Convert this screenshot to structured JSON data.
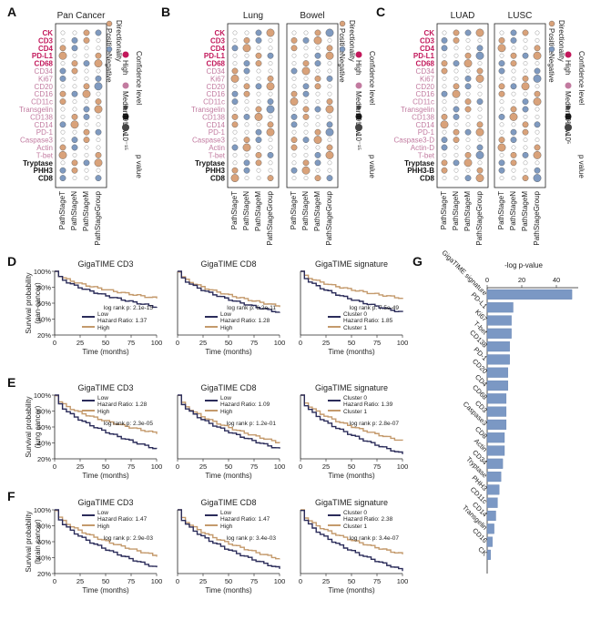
{
  "panel_letters": [
    "A",
    "B",
    "C",
    "D",
    "E",
    "F",
    "G"
  ],
  "markers": [
    "CK",
    "CD3",
    "CD4",
    "PD-L1",
    "CD68",
    "CD34",
    "Ki67",
    "CD20",
    "CD16",
    "CD11c",
    "Transgelin",
    "CD138",
    "CD14",
    "PD-1",
    "Caspase3",
    "Actin",
    "T-bet",
    "Tryptase",
    "PHH3",
    "CD8"
  ],
  "markers_c": [
    "CK",
    "CD3",
    "CD4",
    "PD-L1",
    "CD68",
    "CD34",
    "Ki67",
    "CD20",
    "CD16",
    "CD11c",
    "Transgelin",
    "CD138",
    "CD14",
    "PD-1",
    "Caspase3-D",
    "Actin-D",
    "T-bet",
    "Tryptase",
    "PHH3-B",
    "CD8"
  ],
  "marker_levels": [
    "H",
    "H",
    "H",
    "H",
    "H",
    "M",
    "M",
    "M",
    "M",
    "M",
    "M",
    "M",
    "M",
    "M",
    "M",
    "M",
    "M",
    "L",
    "L",
    "L"
  ],
  "stages": [
    "PathStageT",
    "PathStageN",
    "PathStageM",
    "PathStageGroup"
  ],
  "panels_abc": [
    {
      "letter": "A",
      "titles": [
        "Pan Cancer"
      ]
    },
    {
      "letter": "B",
      "titles": [
        "Lung",
        "Bowel"
      ]
    },
    {
      "letter": "C",
      "titles": [
        "LUAD",
        "LUSC"
      ]
    }
  ],
  "legend": {
    "directionality": {
      "title": "Directionality",
      "items": [
        "Positive",
        "Negative"
      ]
    },
    "confidence": {
      "title": "Confidence level",
      "items": [
        "High",
        "Medium",
        "Low"
      ]
    },
    "pvalue": {
      "title": "p value",
      "items": [
        "10⁻⁵",
        "10⁻¹⁵"
      ],
      "items_c": [
        "10²",
        "10⁵"
      ]
    }
  },
  "colors": {
    "positive": "#d9a27a",
    "negative": "#7f9ac0",
    "high": "#c2185b",
    "medium": "#c27ba0",
    "low": "#111111",
    "low_km": "#2b2c5a",
    "high_km": "#c49a6c",
    "bar": "#7b98c4"
  },
  "survival": {
    "x_label": "Time (months)",
    "x_ticks": [
      "0",
      "25",
      "50",
      "75",
      "100"
    ],
    "y_ticks": [
      "100%",
      "80%",
      "60%",
      "40%",
      "20%"
    ],
    "rows": [
      {
        "letter": "D",
        "ylabel": [
          "Survival probability",
          "(pan-cancer)"
        ]
      },
      {
        "letter": "E",
        "ylabel": [
          "Survival probability",
          "(lung cancer)"
        ]
      },
      {
        "letter": "F",
        "ylabel": [
          "Survival probability",
          "(brain cancer)"
        ]
      }
    ],
    "cols": [
      "GigaTIME CD3",
      "GigaTIME CD8",
      "GigaTIME signature"
    ],
    "cells": [
      [
        {
          "logrank": "log rank p: 2.1e-15",
          "legend": [
            "Low",
            "High"
          ],
          "hr": "Hazard Ratio: 1.37"
        },
        {
          "logrank": "log rank p: 6.2e-11",
          "legend": [
            "Low",
            "High"
          ],
          "hr": "Hazard Ratio: 1.28"
        },
        {
          "logrank": "log rank p: 7.5e-49",
          "legend": [
            "Cluster 0",
            "Cluster 1"
          ],
          "hr": "Hazard Ratio: 1.85"
        }
      ],
      [
        {
          "logrank": "log rank p: 2.3e-05",
          "legend": [
            "Low",
            "High"
          ],
          "hr": "Hazard Ratio: 1.28"
        },
        {
          "logrank": "log rank p: 1.2e-01",
          "legend": [
            "Low",
            "High"
          ],
          "hr": "Hazard Ratio: 1.09"
        },
        {
          "logrank": "log rank p: 2.8e-07",
          "legend": [
            "Cluster 0",
            "Cluster 1"
          ],
          "hr": "Hazard Ratio: 1.39"
        }
      ],
      [
        {
          "logrank": "log rank p: 2.9e-03",
          "legend": [
            "Low",
            "High"
          ],
          "hr": "Hazard Ratio: 1.47"
        },
        {
          "logrank": "log rank p: 3.4e-03",
          "legend": [
            "Low",
            "High"
          ],
          "hr": "Hazard Ratio: 1.47"
        },
        {
          "logrank": "log rank p: 3.4e-07",
          "legend": [
            "Cluster 0",
            "Cluster 1"
          ],
          "hr": "Hazard Ratio: 2.38"
        }
      ]
    ]
  },
  "chart_data": {
    "type": "bar",
    "title": "-log p-value",
    "categories": [
      "GigaTIME signature",
      "PD-L1",
      "Ki67",
      "T-bet",
      "CD138",
      "PD-1",
      "CD20",
      "CD4",
      "CD68",
      "CD3",
      "Caspase3",
      "CD8",
      "Actin",
      "CD34",
      "Tryptase",
      "PHH3",
      "CD11c",
      "CD14",
      "Transgelin",
      "CD16",
      "CK"
    ],
    "values": [
      49,
      15,
      14,
      14,
      13,
      13,
      12,
      12,
      11,
      11,
      11,
      10,
      10,
      9,
      8,
      7,
      6,
      5,
      4,
      3,
      2
    ],
    "ticks": [
      "0",
      "20",
      "40"
    ],
    "xlim": [
      0,
      50
    ]
  }
}
